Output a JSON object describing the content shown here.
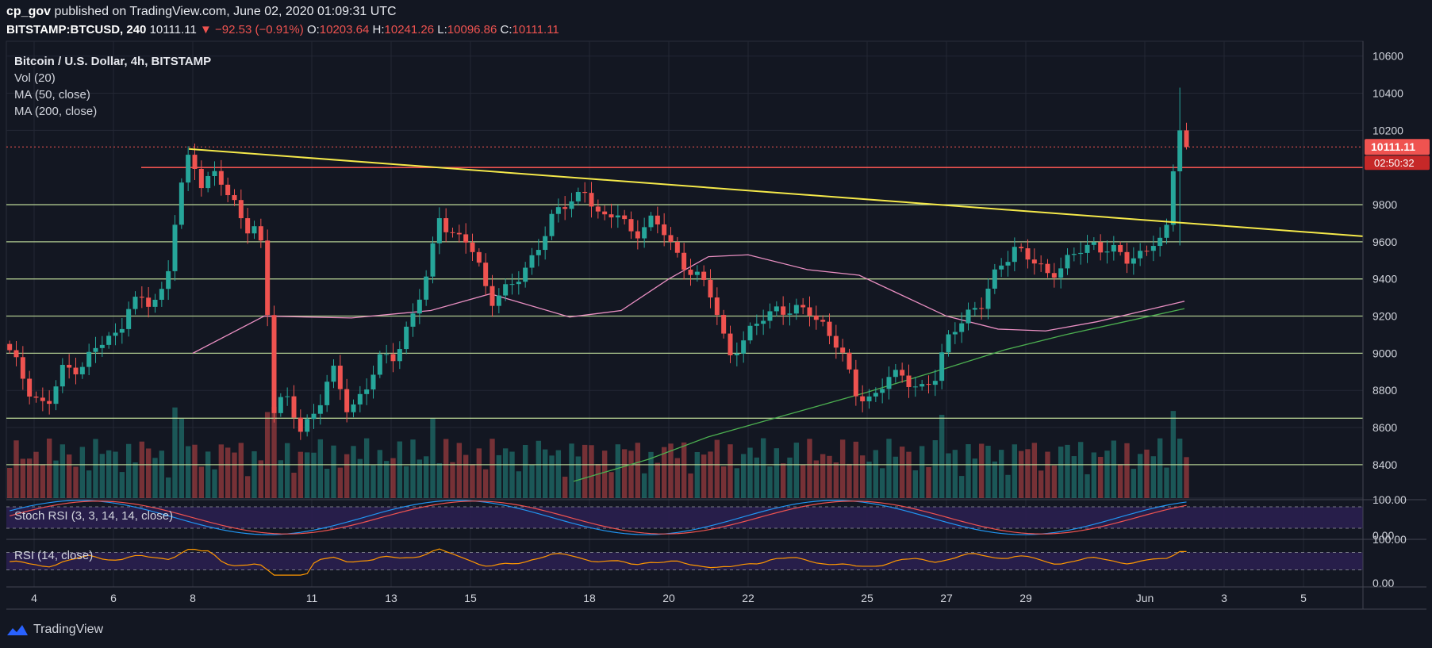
{
  "header": {
    "author": "cp_gov",
    "published_text": "published on TradingView.com, June 02, 2020 01:09:31 UTC"
  },
  "quote": {
    "symbol": "BITSTAMP:BTCUSD, 240",
    "last": "10111.11",
    "change": "−92.53 (−0.91%)",
    "open_label": "O:",
    "open": "10203.64",
    "high_label": "H:",
    "high": "10241.26",
    "low_label": "L:",
    "low": "10096.86",
    "close_label": "C:",
    "close": "10111.11"
  },
  "legend": {
    "title": "Bitcoin / U.S. Dollar, 4h, BITSTAMP",
    "vol": "Vol (20)",
    "ma50": "MA (50, close)",
    "ma200": "MA (200, close)"
  },
  "indicators": {
    "stoch": "Stoch RSI (3, 3, 14, 14, close)",
    "rsi": "RSI (14, close)"
  },
  "footer": {
    "brand": "TradingView"
  },
  "colors": {
    "background": "#131722",
    "up": "#26a69a",
    "down": "#ef5350",
    "trendline": "#f5e94a",
    "resistance": "#ef5350",
    "support": "#c8e6a0",
    "ma50": "#e98fc2",
    "ma200": "#4caf50",
    "stoch_k": "#2196f3",
    "stoch_d": "#ef5350",
    "rsi": "#ff9800",
    "band": "#2a1f4f"
  },
  "chart_data": {
    "type": "candlestick",
    "price_axis": {
      "ticks": [
        10600,
        10400,
        10200,
        9800,
        9600,
        9400,
        9200,
        9000,
        8800,
        8600,
        8400
      ],
      "ylim": [
        8220,
        10680
      ]
    },
    "time_axis": {
      "labels": [
        {
          "text": "4",
          "day": 4
        },
        {
          "text": "6",
          "day": 6
        },
        {
          "text": "8",
          "day": 8
        },
        {
          "text": "11",
          "day": 11
        },
        {
          "text": "13",
          "day": 13
        },
        {
          "text": "15",
          "day": 15
        },
        {
          "text": "18",
          "day": 18
        },
        {
          "text": "20",
          "day": 20
        },
        {
          "text": "22",
          "day": 22
        },
        {
          "text": "25",
          "day": 25
        },
        {
          "text": "27",
          "day": 27
        },
        {
          "text": "29",
          "day": 29
        },
        {
          "text": "Jun",
          "day": 32
        },
        {
          "text": "3",
          "day": 34
        },
        {
          "text": "5",
          "day": 36
        }
      ],
      "xlim": [
        3.3,
        37.5
      ]
    },
    "last_price": {
      "value": 10111.11,
      "label": "10111.11",
      "countdown": "02:50:32"
    },
    "resistance_level": {
      "value": 10000,
      "from_day": 6.7
    },
    "support_levels": [
      9800,
      9600,
      9400,
      9200,
      9000,
      8650,
      8400
    ],
    "trendline": {
      "start": [
        7.9,
        10100
      ],
      "end": [
        37.5,
        9630
      ]
    },
    "anchors": [
      [
        3.3,
        9050
      ],
      [
        3.6,
        8950
      ],
      [
        4.0,
        8800
      ],
      [
        4.4,
        8700
      ],
      [
        4.8,
        8900
      ],
      [
        5.3,
        8950
      ],
      [
        5.8,
        9050
      ],
      [
        6.2,
        9100
      ],
      [
        6.5,
        9300
      ],
      [
        7.0,
        9250
      ],
      [
        7.4,
        9350
      ],
      [
        7.7,
        9850
      ],
      [
        8.0,
        10050
      ],
      [
        8.3,
        9900
      ],
      [
        8.7,
        10000
      ],
      [
        9.1,
        9800
      ],
      [
        9.4,
        9650
      ],
      [
        9.7,
        9700
      ],
      [
        9.9,
        9500
      ],
      [
        10.1,
        8700
      ],
      [
        10.4,
        8750
      ],
      [
        10.8,
        8600
      ],
      [
        11.2,
        8700
      ],
      [
        11.6,
        8900
      ],
      [
        12.0,
        8700
      ],
      [
        12.4,
        8800
      ],
      [
        12.8,
        8950
      ],
      [
        13.2,
        9000
      ],
      [
        13.6,
        9200
      ],
      [
        14.0,
        9400
      ],
      [
        14.3,
        9750
      ],
      [
        14.6,
        9650
      ],
      [
        15.0,
        9600
      ],
      [
        15.3,
        9450
      ],
      [
        15.6,
        9300
      ],
      [
        16.0,
        9350
      ],
      [
        16.4,
        9400
      ],
      [
        16.8,
        9600
      ],
      [
        17.2,
        9750
      ],
      [
        17.6,
        9800
      ],
      [
        18.0,
        9900
      ],
      [
        18.4,
        9700
      ],
      [
        18.8,
        9750
      ],
      [
        19.2,
        9650
      ],
      [
        19.6,
        9700
      ],
      [
        20.0,
        9650
      ],
      [
        20.4,
        9500
      ],
      [
        20.8,
        9400
      ],
      [
        21.2,
        9300
      ],
      [
        21.6,
        9000
      ],
      [
        22.0,
        9050
      ],
      [
        22.4,
        9200
      ],
      [
        22.8,
        9250
      ],
      [
        23.2,
        9200
      ],
      [
        23.6,
        9250
      ],
      [
        24.0,
        9150
      ],
      [
        24.4,
        9000
      ],
      [
        24.8,
        8800
      ],
      [
        25.2,
        8750
      ],
      [
        25.6,
        8850
      ],
      [
        26.0,
        8900
      ],
      [
        26.4,
        8800
      ],
      [
        26.8,
        8850
      ],
      [
        27.2,
        9150
      ],
      [
        27.6,
        9200
      ],
      [
        28.0,
        9250
      ],
      [
        28.4,
        9500
      ],
      [
        28.8,
        9550
      ],
      [
        29.2,
        9500
      ],
      [
        29.6,
        9450
      ],
      [
        30.0,
        9450
      ],
      [
        30.4,
        9550
      ],
      [
        30.8,
        9600
      ],
      [
        31.2,
        9550
      ],
      [
        31.6,
        9500
      ],
      [
        32.0,
        9550
      ],
      [
        32.3,
        9600
      ],
      [
        32.6,
        9580
      ],
      [
        32.9,
        10200
      ],
      [
        33.2,
        10111
      ]
    ],
    "series": [
      {
        "name": "MA (50, close)",
        "points": [
          [
            8.0,
            9000
          ],
          [
            9.8,
            9200
          ],
          [
            12.0,
            9190
          ],
          [
            14.0,
            9230
          ],
          [
            15.5,
            9320
          ],
          [
            17.5,
            9195
          ],
          [
            18.8,
            9230
          ],
          [
            20.0,
            9400
          ],
          [
            21.0,
            9520
          ],
          [
            22.0,
            9530
          ],
          [
            23.5,
            9450
          ],
          [
            24.8,
            9420
          ],
          [
            26.0,
            9300
          ],
          [
            27.0,
            9200
          ],
          [
            28.3,
            9130
          ],
          [
            29.5,
            9120
          ],
          [
            30.8,
            9170
          ],
          [
            32.0,
            9230
          ],
          [
            33.0,
            9280
          ]
        ]
      },
      {
        "name": "MA (200, close)",
        "points": [
          [
            17.6,
            8310
          ],
          [
            19.5,
            8430
          ],
          [
            21.0,
            8550
          ],
          [
            23.0,
            8670
          ],
          [
            25.0,
            8790
          ],
          [
            27.0,
            8920
          ],
          [
            28.5,
            9020
          ],
          [
            30.0,
            9100
          ],
          [
            31.5,
            9170
          ],
          [
            33.0,
            9240
          ]
        ]
      }
    ],
    "stoch_rsi": {
      "ylim": [
        0,
        100
      ],
      "ticks": [
        100,
        0
      ],
      "tick_labels": [
        "100.00",
        "0.00"
      ],
      "band": [
        20,
        80
      ]
    },
    "rsi": {
      "ylim": [
        0,
        100
      ],
      "ticks": [
        100,
        0
      ],
      "tick_labels": [
        "100.00",
        "0.00"
      ],
      "band": [
        30,
        70
      ]
    }
  }
}
